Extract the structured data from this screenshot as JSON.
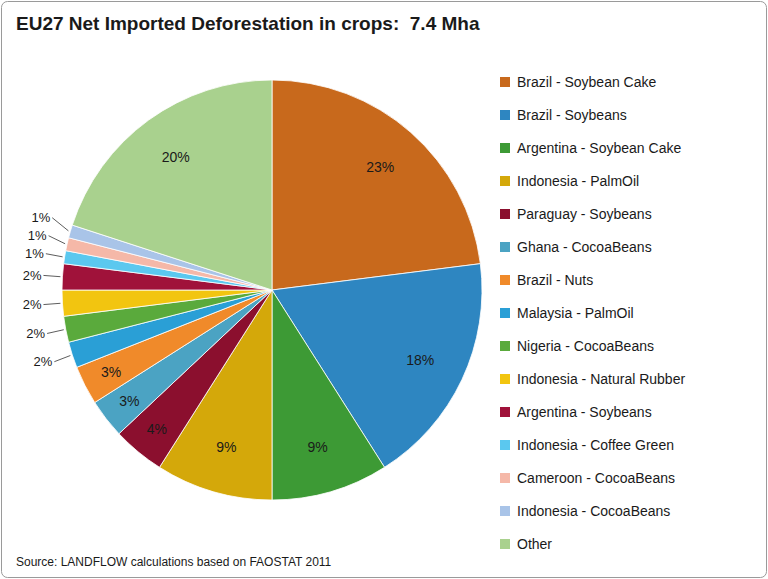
{
  "chart_data": {
    "type": "pie",
    "title": "EU27 Net Imported Deforestation in crops:  7.4 Mha",
    "source": "Source: LANDFLOW calculations based on FAOSTAT 2011",
    "categories": [
      "Brazil - Soybean Cake",
      "Brazil - Soybeans",
      "Argentina - Soybean Cake",
      "Indonesia - PalmOil",
      "Paraguay - Soybeans",
      "Ghana - CocoaBeans",
      "Brazil - Nuts",
      "Malaysia - PalmOil",
      "Nigeria - CocoaBeans",
      "Indonesia - Natural Rubber",
      "Argentina - Soybeans",
      "Indonesia - Coffee Green",
      "Cameroon - CocoaBeans",
      "Indonesia - CocoaBeans",
      "Other"
    ],
    "values": [
      23,
      18,
      9,
      9,
      4,
      3,
      3,
      2,
      2,
      2,
      2,
      1,
      1,
      1,
      20
    ],
    "value_labels": [
      "23%",
      "18%",
      "9%",
      "9%",
      "4%",
      "3%",
      "3%",
      "2%",
      "2%",
      "2%",
      "2%",
      "1%",
      "1%",
      "1%",
      "20%"
    ],
    "colors": [
      "#c8691c",
      "#2e86c1",
      "#3d9a35",
      "#d4a80a",
      "#8b0f2e",
      "#4ba3c3",
      "#f08a2a",
      "#2a9fd6",
      "#5aaa3c",
      "#f2c510",
      "#a0123a",
      "#5bc8ef",
      "#f5b8a8",
      "#a9c4e8",
      "#a9d18e"
    ],
    "data_labels": true,
    "legend": "right"
  }
}
